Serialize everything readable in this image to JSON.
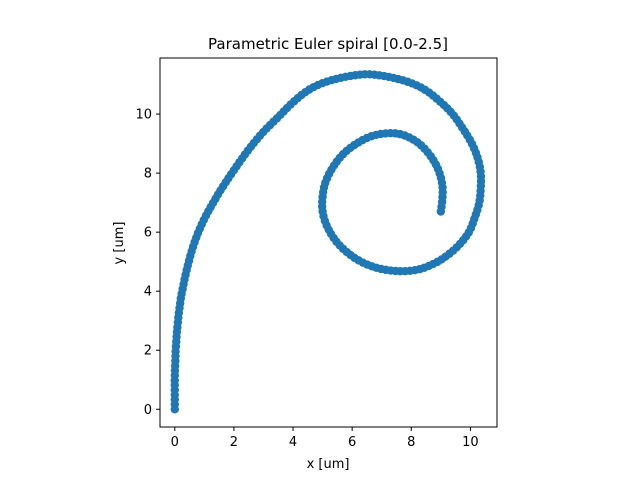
{
  "chart_data": {
    "type": "scatter",
    "title": "Parametric Euler spiral [0.0-2.5]",
    "xlabel": "x [um]",
    "ylabel": "y [um]",
    "xlim": [
      -0.5,
      10.9
    ],
    "ylim": [
      -0.6,
      11.9
    ],
    "xticks": [
      0,
      2,
      4,
      6,
      8,
      10
    ],
    "yticks": [
      0,
      2,
      4,
      6,
      8,
      10
    ],
    "grid": false,
    "legend": "none",
    "series_color": "#1f77b4",
    "marker": "circle",
    "line": true,
    "aspect": "equal",
    "param_range": [
      0.0,
      2.5
    ],
    "point_count": 220,
    "series": [
      {
        "points": [
          [
            0.0,
            0.0
          ],
          [
            0.0,
            0.55
          ],
          [
            0.0,
            1.1
          ],
          [
            0.02,
            1.7
          ],
          [
            0.03,
            2.0
          ],
          [
            0.05,
            2.3
          ],
          [
            0.07,
            2.6
          ],
          [
            0.1,
            2.9
          ],
          [
            0.13,
            3.2
          ],
          [
            0.17,
            3.5
          ],
          [
            0.21,
            3.8
          ],
          [
            0.27,
            4.1
          ],
          [
            0.33,
            4.4
          ],
          [
            0.41,
            4.75
          ],
          [
            0.5,
            5.1
          ],
          [
            0.6,
            5.45
          ],
          [
            0.72,
            5.8
          ],
          [
            0.86,
            6.15
          ],
          [
            1.05,
            6.55
          ],
          [
            1.3,
            7.0
          ],
          [
            1.6,
            7.5
          ],
          [
            2.0,
            8.1
          ],
          [
            2.5,
            8.8
          ],
          [
            3.0,
            9.4
          ],
          [
            3.5,
            9.9
          ],
          [
            4.0,
            10.4
          ],
          [
            4.5,
            10.8
          ],
          [
            5.0,
            11.05
          ],
          [
            5.5,
            11.2
          ],
          [
            6.0,
            11.3
          ],
          [
            6.5,
            11.35
          ],
          [
            7.0,
            11.3
          ],
          [
            7.5,
            11.2
          ],
          [
            8.0,
            11.05
          ],
          [
            8.5,
            10.8
          ],
          [
            9.0,
            10.4
          ],
          [
            9.4,
            10.0
          ],
          [
            9.75,
            9.5
          ],
          [
            10.05,
            9.0
          ],
          [
            10.25,
            8.5
          ],
          [
            10.35,
            8.0
          ],
          [
            10.35,
            7.5
          ],
          [
            10.3,
            7.0
          ],
          [
            10.15,
            6.5
          ],
          [
            9.95,
            6.0
          ],
          [
            9.6,
            5.55
          ],
          [
            9.2,
            5.2
          ],
          [
            8.8,
            4.95
          ],
          [
            8.3,
            4.75
          ],
          [
            7.8,
            4.68
          ],
          [
            7.3,
            4.7
          ],
          [
            6.8,
            4.8
          ],
          [
            6.3,
            5.0
          ],
          [
            5.85,
            5.3
          ],
          [
            5.45,
            5.7
          ],
          [
            5.15,
            6.2
          ],
          [
            5.0,
            6.7
          ],
          [
            5.0,
            7.2
          ],
          [
            5.1,
            7.7
          ],
          [
            5.35,
            8.2
          ],
          [
            5.7,
            8.65
          ],
          [
            6.15,
            9.0
          ],
          [
            6.65,
            9.25
          ],
          [
            7.2,
            9.35
          ],
          [
            7.7,
            9.3
          ],
          [
            8.2,
            9.05
          ],
          [
            8.6,
            8.65
          ],
          [
            8.9,
            8.15
          ],
          [
            9.05,
            7.6
          ],
          [
            9.05,
            7.1
          ],
          [
            9.0,
            6.7
          ]
        ]
      }
    ]
  }
}
